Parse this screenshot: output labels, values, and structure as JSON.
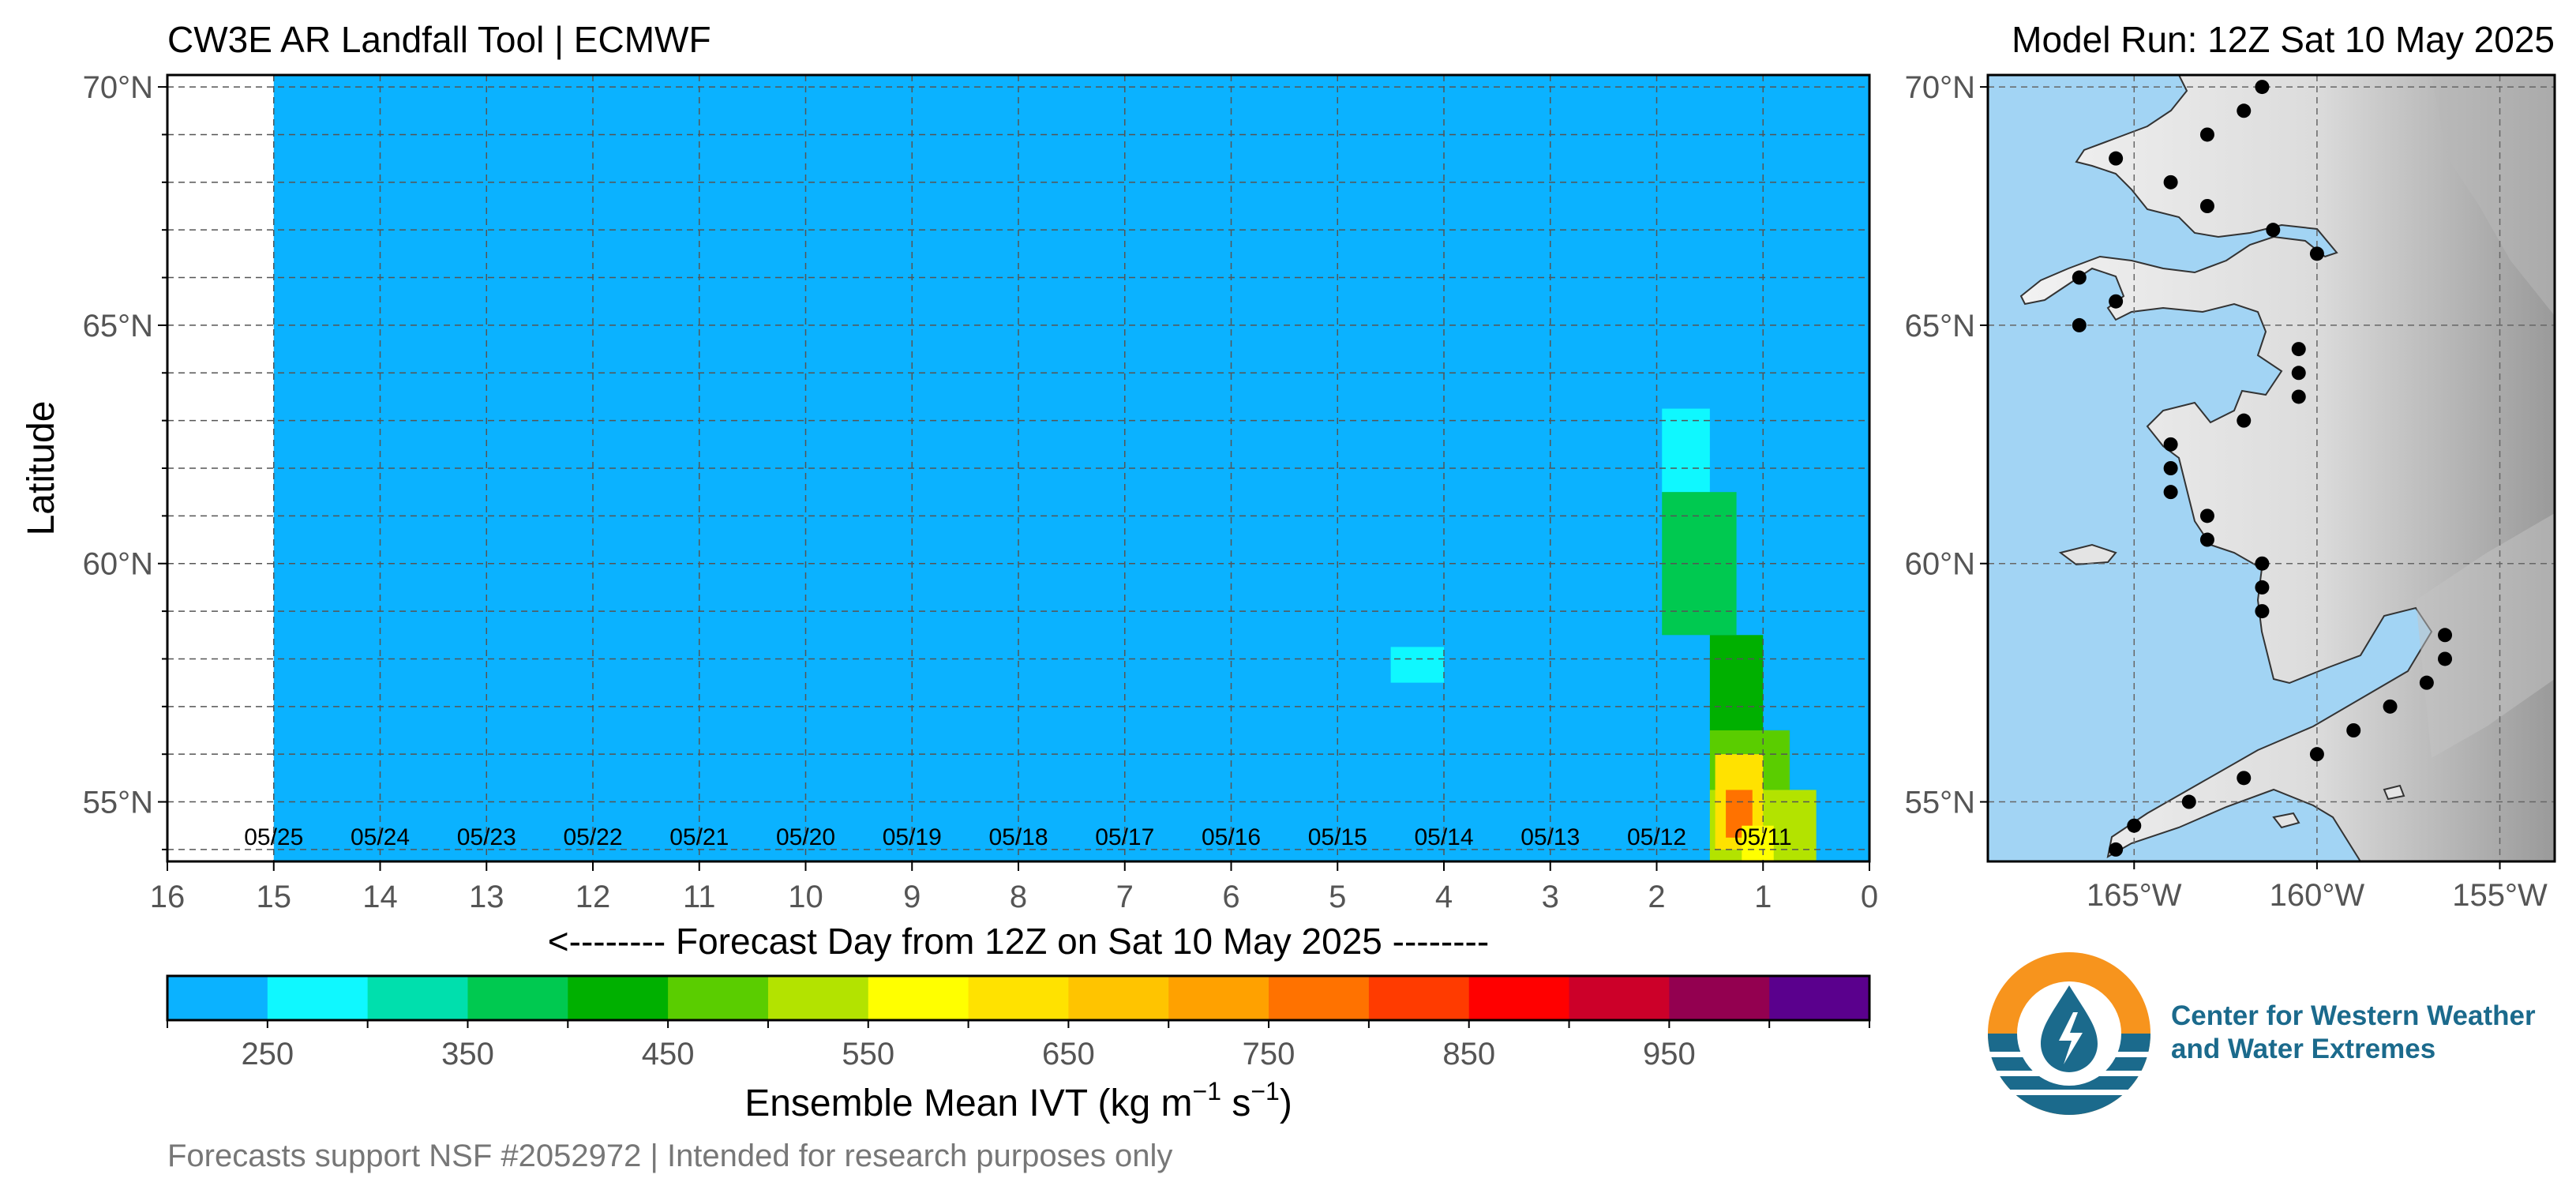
{
  "header": {
    "title": "CW3E AR Landfall Tool | ECMWF",
    "model_run": "Model Run: 12Z Sat 10 May 2025"
  },
  "footer": {
    "note": "Forecasts support NSF #2052972 | Intended for research purposes only"
  },
  "logo": {
    "line1": "Center for Western Weather",
    "line2": "and Water Extremes"
  },
  "chart_data": [
    {
      "type": "heatmap",
      "title": "",
      "xlabel": "<-------- Forecast Day from 12Z on Sat 10 May 2025 --------",
      "ylabel": "Latitude",
      "x_reversed": true,
      "xlim": [
        16,
        0
      ],
      "ylim": [
        53.75,
        70.25
      ],
      "x_ticks": [
        16,
        15,
        14,
        13,
        12,
        11,
        10,
        9,
        8,
        7,
        6,
        5,
        4,
        3,
        2,
        1,
        0
      ],
      "y_ticks": [
        {
          "value": 55,
          "label": "55°N"
        },
        {
          "value": 60,
          "label": "60°N"
        },
        {
          "value": 65,
          "label": "65°N"
        },
        {
          "value": 70,
          "label": "70°N"
        }
      ],
      "grid": true,
      "date_labels": [
        {
          "day": 15,
          "label": "05/25"
        },
        {
          "day": 14,
          "label": "05/24"
        },
        {
          "day": 13,
          "label": "05/23"
        },
        {
          "day": 12,
          "label": "05/22"
        },
        {
          "day": 11,
          "label": "05/21"
        },
        {
          "day": 10,
          "label": "05/20"
        },
        {
          "day": 9,
          "label": "05/19"
        },
        {
          "day": 8,
          "label": "05/18"
        },
        {
          "day": 7,
          "label": "05/17"
        },
        {
          "day": 6,
          "label": "05/16"
        },
        {
          "day": 5,
          "label": "05/15"
        },
        {
          "day": 4,
          "label": "05/14"
        },
        {
          "day": 3,
          "label": "05/13"
        },
        {
          "day": 2,
          "label": "05/12"
        },
        {
          "day": 1,
          "label": "05/11"
        }
      ],
      "data_extent_days": [
        0,
        15
      ],
      "background_ivt": 225,
      "features": [
        {
          "day_from": 1.5,
          "day_to": 1.95,
          "lat_from": 61.5,
          "lat_to": 63.25,
          "ivt": 275
        },
        {
          "day_from": 1.25,
          "day_to": 1.95,
          "lat_from": 58.5,
          "lat_to": 61.5,
          "ivt": 375
        },
        {
          "day_from": 1.0,
          "day_to": 1.5,
          "lat_from": 56.5,
          "lat_to": 58.5,
          "ivt": 425
        },
        {
          "day_from": 4.0,
          "day_to": 4.5,
          "lat_from": 57.5,
          "lat_to": 58.25,
          "ivt": 275
        },
        {
          "day_from": 0.75,
          "day_to": 1.5,
          "lat_from": 55.25,
          "lat_to": 56.5,
          "ivt": 475
        },
        {
          "day_from": 0.5,
          "day_to": 1.5,
          "lat_from": 53.75,
          "lat_to": 55.25,
          "ivt": 525
        },
        {
          "day_from": 1.0,
          "day_to": 1.45,
          "lat_from": 54.0,
          "lat_to": 56.0,
          "ivt": 625
        },
        {
          "day_from": 1.1,
          "day_to": 1.35,
          "lat_from": 54.25,
          "lat_to": 55.25,
          "ivt": 775
        },
        {
          "day_from": 0.9,
          "day_to": 1.2,
          "lat_from": 53.75,
          "lat_to": 54.5,
          "ivt": 575
        }
      ]
    },
    {
      "type": "colorbar",
      "label": "Ensemble Mean IVT (kg m⁻¹ s⁻¹)",
      "label_main": "Ensemble Mean IVT (kg m",
      "label_exp1": "−1",
      "label_mid": " s",
      "label_exp2": "−1",
      "label_end": ")",
      "range": [
        200,
        1050
      ],
      "bounds": [
        200,
        250,
        300,
        350,
        400,
        450,
        500,
        550,
        600,
        650,
        700,
        750,
        800,
        850,
        900,
        950,
        1000,
        1050
      ],
      "colors": [
        "#0bb2ff",
        "#0ff8ff",
        "#00dfad",
        "#00c950",
        "#00b000",
        "#5acd00",
        "#b3e300",
        "#ffff00",
        "#ffe200",
        "#ffc400",
        "#ffa100",
        "#ff7200",
        "#ff3b00",
        "#ff0000",
        "#cc0029",
        "#930050",
        "#5a008d"
      ],
      "tick_labels": [
        "250",
        "350",
        "450",
        "550",
        "650",
        "750",
        "850",
        "950"
      ],
      "tick_values": [
        250,
        350,
        450,
        550,
        650,
        750,
        850,
        950
      ]
    },
    {
      "type": "scatter",
      "xlim": [
        -169,
        -153.5
      ],
      "ylim": [
        53.75,
        70.25
      ],
      "x_ticks": [
        {
          "value": -165,
          "label": "165°W"
        },
        {
          "value": -160,
          "label": "160°W"
        },
        {
          "value": -155,
          "label": "155°W"
        }
      ],
      "y_ticks": [
        {
          "value": 55,
          "label": "55°N"
        },
        {
          "value": 60,
          "label": "60°N"
        },
        {
          "value": 65,
          "label": "65°N"
        },
        {
          "value": 70,
          "label": "70°N"
        }
      ],
      "grid": true,
      "ocean_color": "#a2d4f4",
      "land_color": "#e4e4e4",
      "points": [
        [
          -161.5,
          70.0
        ],
        [
          -162.0,
          69.5
        ],
        [
          -163.0,
          69.0
        ],
        [
          -165.5,
          68.5
        ],
        [
          -164.0,
          68.0
        ],
        [
          -163.0,
          67.5
        ],
        [
          -161.2,
          67.0
        ],
        [
          -160.0,
          66.5
        ],
        [
          -166.5,
          66.0
        ],
        [
          -165.5,
          65.5
        ],
        [
          -166.5,
          65.0
        ],
        [
          -160.5,
          64.5
        ],
        [
          -160.5,
          64.0
        ],
        [
          -160.5,
          63.5
        ],
        [
          -162.0,
          63.0
        ],
        [
          -164.0,
          62.5
        ],
        [
          -164.0,
          62.0
        ],
        [
          -164.0,
          61.5
        ],
        [
          -163.0,
          61.0
        ],
        [
          -163.0,
          60.5
        ],
        [
          -161.5,
          60.0
        ],
        [
          -161.5,
          59.5
        ],
        [
          -161.5,
          59.0
        ],
        [
          -156.5,
          58.5
        ],
        [
          -156.5,
          58.0
        ],
        [
          -157.0,
          57.5
        ],
        [
          -158.0,
          57.0
        ],
        [
          -159.0,
          56.5
        ],
        [
          -160.0,
          56.0
        ],
        [
          -162.0,
          55.5
        ],
        [
          -163.5,
          55.0
        ],
        [
          -165.0,
          54.5
        ],
        [
          -165.5,
          54.0
        ]
      ]
    }
  ]
}
